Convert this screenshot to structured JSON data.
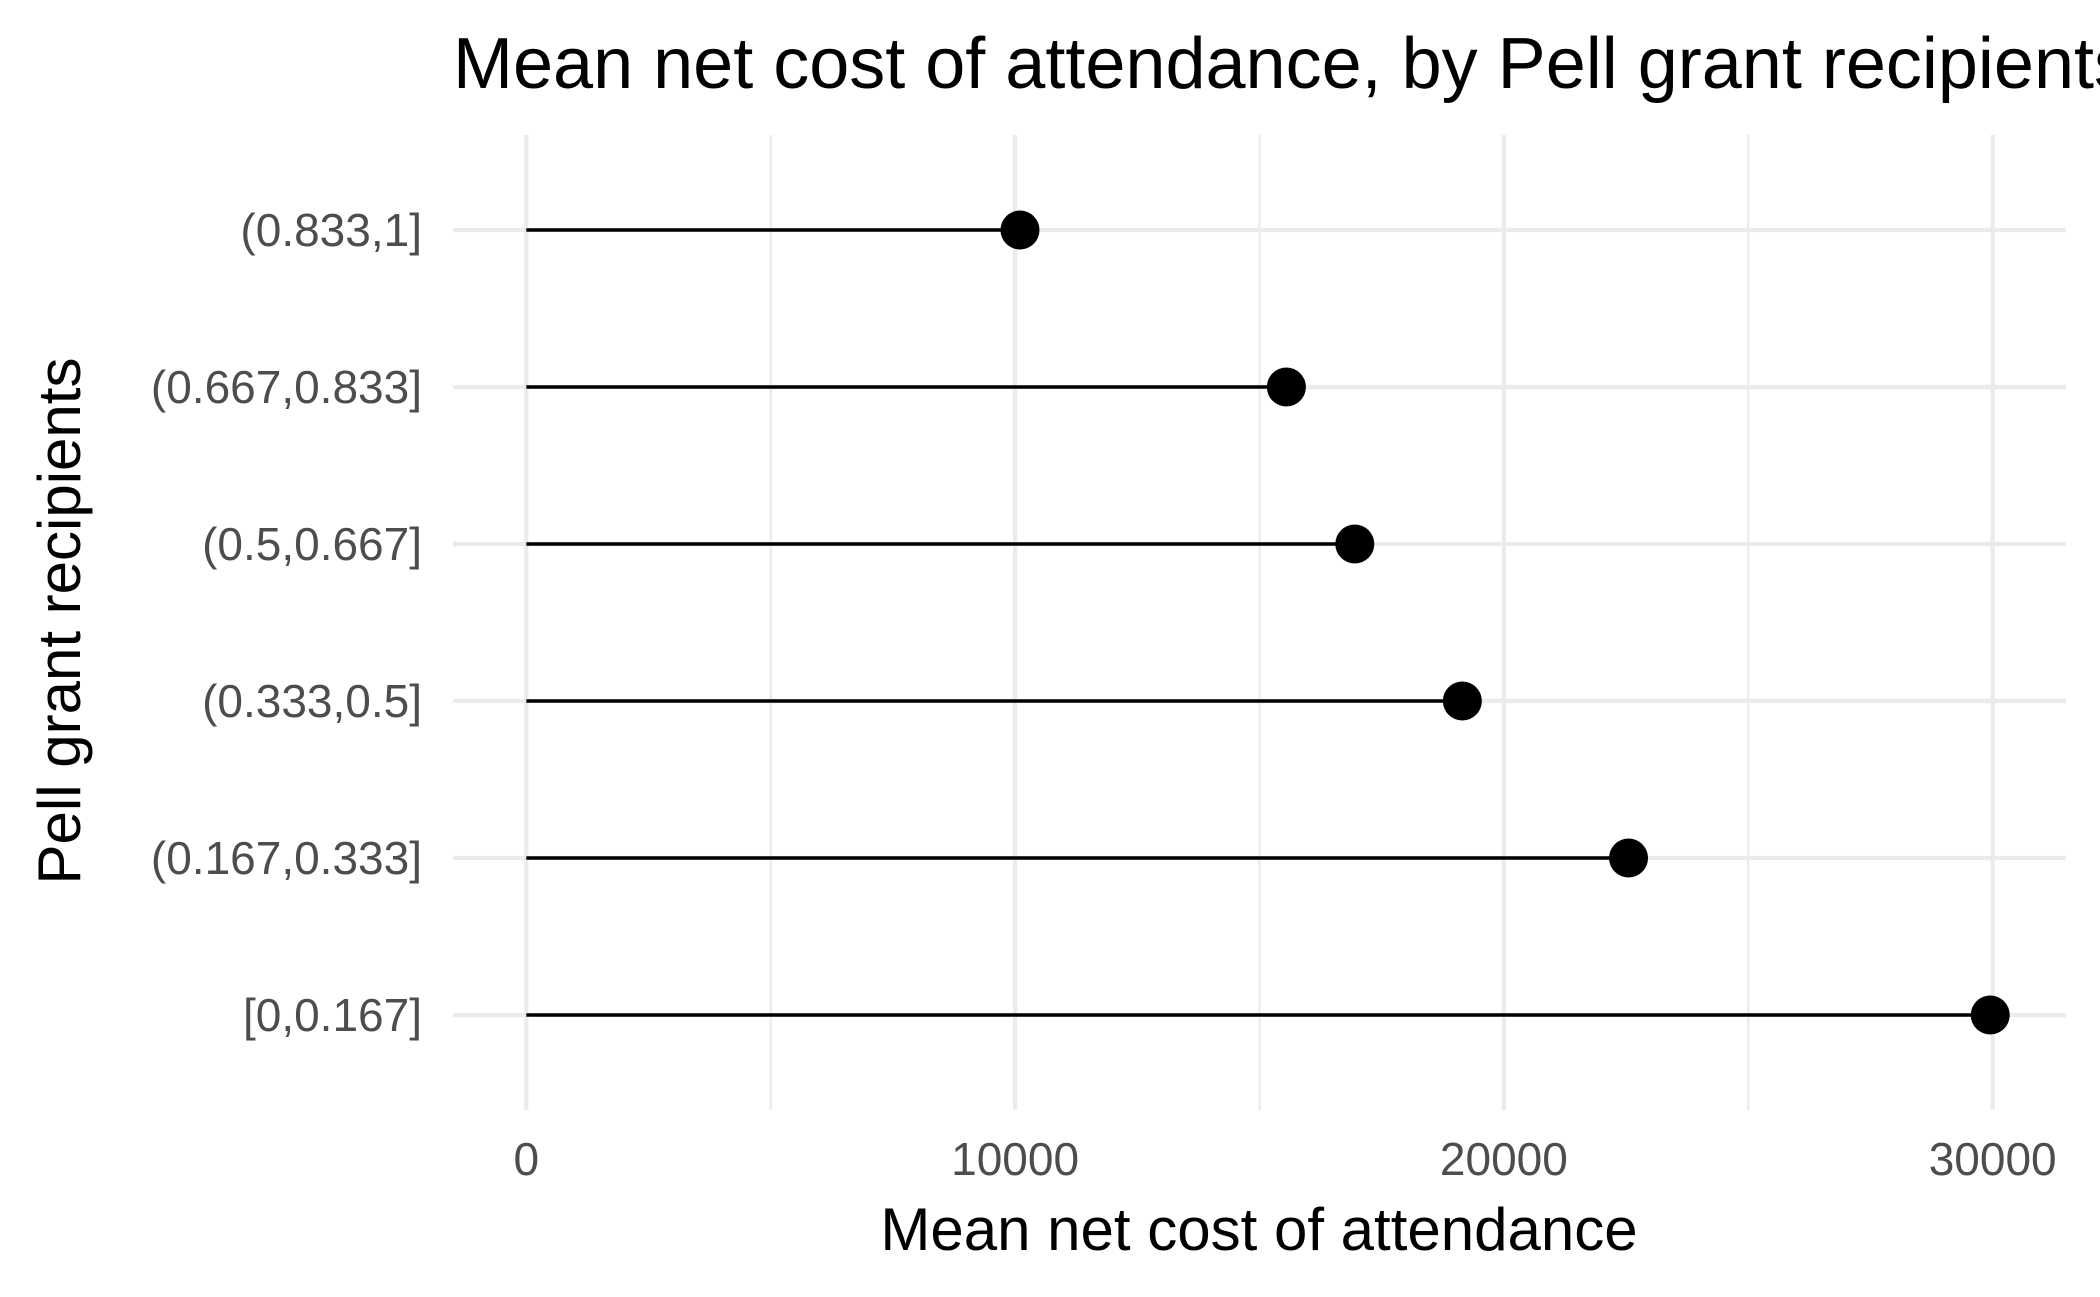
{
  "chart_data": {
    "type": "lollipop",
    "title": "Mean net cost of attendance, by Pell grant recipients",
    "xlabel": "Mean net cost of attendance",
    "ylabel": "Pell grant recipients",
    "categories": [
      "[0,0.167]",
      "(0.167,0.333]",
      "(0.333,0.5]",
      "(0.5,0.667]",
      "(0.667,0.833]",
      "(0.833,1]"
    ],
    "values": [
      29950,
      22550,
      19150,
      16950,
      15550,
      10100
    ],
    "xlim": [
      -1500,
      31500
    ],
    "x_ticks": [
      0,
      10000,
      20000,
      30000
    ],
    "x_minor_ticks": [
      5000,
      15000,
      25000
    ],
    "grid": true,
    "legend": "none",
    "colors": {
      "marks": "#000000",
      "grid": "#ebebeb",
      "tick_text": "#4d4d4d",
      "text": "#000000"
    }
  }
}
